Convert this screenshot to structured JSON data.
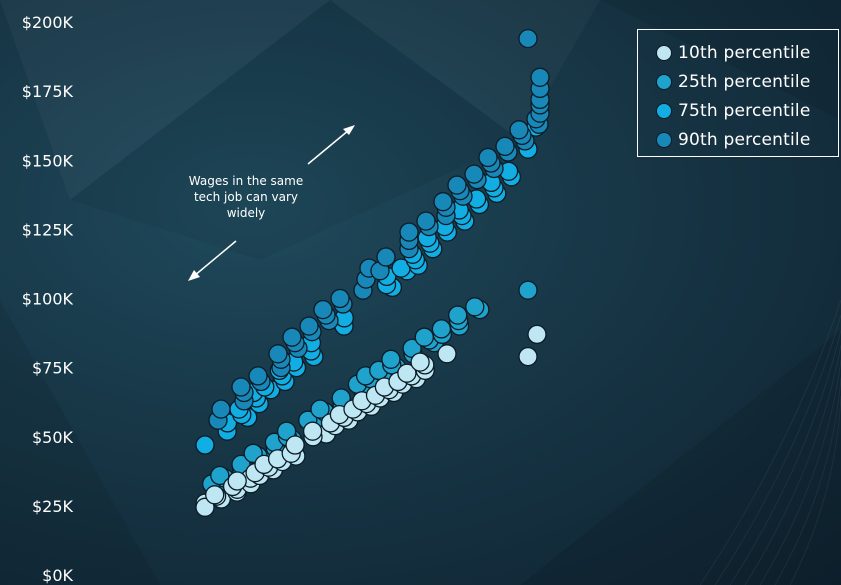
{
  "chart_data": {
    "type": "scatter",
    "title": "",
    "xlabel": "",
    "ylabel": "",
    "ylim": [
      0,
      200000
    ],
    "yticks": [
      "$0K",
      "$25K",
      "$50K",
      "$75K",
      "$100K",
      "$125K",
      "$150K",
      "$175K",
      "$200K"
    ],
    "grid": false,
    "legend_position": "top-right",
    "annotation": "Wages in the same tech job can vary widely",
    "series": [
      {
        "name": "10th percentile",
        "color": "#bfe6f3",
        "y": [
          26000,
          27500,
          28500,
          30000,
          24500,
          29000,
          31000,
          32000,
          33000,
          35000,
          34000,
          36000,
          37000,
          38000,
          39000,
          40000,
          41000,
          42000,
          43000,
          44000,
          47000,
          51000,
          50000,
          52000,
          54000,
          55000,
          56000,
          57000,
          58000,
          59000,
          60000,
          61000,
          62000,
          63000,
          64000,
          65000,
          66000,
          67000,
          68000,
          69000,
          70000,
          71000,
          72000,
          73000,
          74000,
          76000,
          77000,
          80000,
          79000,
          87000
        ]
      },
      {
        "name": "25th percentile",
        "color": "#1fa3cc",
        "y": [
          32000,
          33000,
          34000,
          35000,
          36000,
          38000,
          40000,
          42000,
          43000,
          44000,
          46000,
          48000,
          49000,
          50000,
          52000,
          55000,
          56000,
          58000,
          59000,
          60000,
          62000,
          64000,
          66000,
          68000,
          69000,
          70000,
          71000,
          72000,
          73000,
          74000,
          75000,
          76000,
          78000,
          80000,
          82000,
          84000,
          85000,
          86000,
          87000,
          89000,
          90000,
          92000,
          94000,
          96000,
          97000,
          103000
        ]
      },
      {
        "name": "75th percentile",
        "color": "#12aee3",
        "y": [
          47000,
          52000,
          55000,
          57000,
          58000,
          60000,
          62000,
          64000,
          66000,
          67000,
          68000,
          70000,
          72000,
          74000,
          75000,
          77000,
          79000,
          81000,
          84000,
          90000,
          93000,
          104000,
          105000,
          108000,
          110000,
          111000,
          112000,
          114000,
          116000,
          118000,
          120000,
          122000,
          124000,
          126000,
          128000,
          130000,
          132000,
          134000,
          136000,
          138000,
          140000,
          142000,
          144000,
          146000,
          154000,
          162000
        ]
      },
      {
        "name": "90th percentile",
        "color": "#1888b8",
        "y": [
          56000,
          60000,
          63000,
          66000,
          68000,
          70000,
          72000,
          75000,
          78000,
          80000,
          82000,
          84000,
          86000,
          88000,
          90000,
          92000,
          94000,
          96000,
          98000,
          100000,
          103000,
          107000,
          111000,
          110000,
          115000,
          118000,
          121000,
          124000,
          126000,
          128000,
          130000,
          133000,
          135000,
          137000,
          139000,
          141000,
          143000,
          145000,
          147000,
          149000,
          151000,
          153000,
          155000,
          157000,
          159000,
          161000,
          163000,
          165000,
          167000,
          170000,
          172000,
          176000,
          180000,
          194000
        ]
      }
    ]
  }
}
